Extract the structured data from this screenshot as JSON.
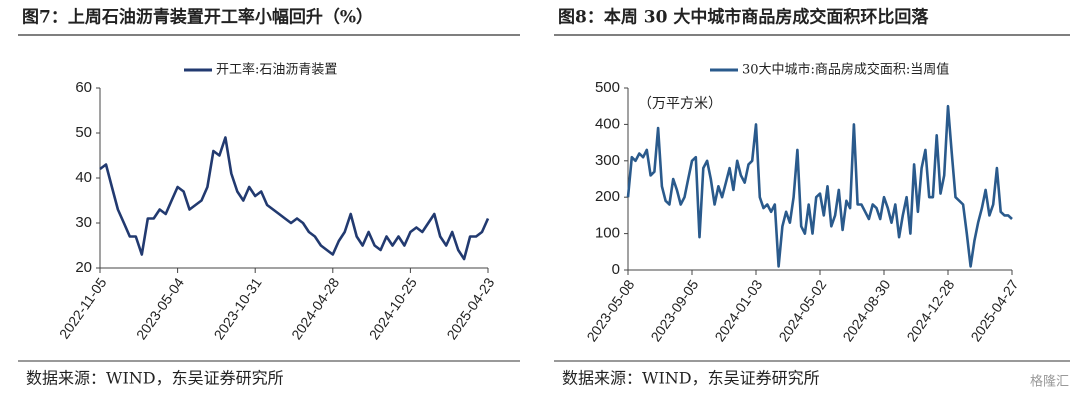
{
  "chart_data": [
    {
      "type": "line",
      "title": "图7：上周石油沥青装置开工率小幅回升（%）",
      "source": "数据来源：WIND，东吴证券研究所",
      "categories": [
        "2022-11-05",
        null,
        null,
        null,
        null,
        null,
        null,
        null,
        null,
        null,
        null,
        null,
        null,
        "2023-05-04",
        null,
        null,
        null,
        null,
        null,
        null,
        null,
        null,
        null,
        null,
        null,
        null,
        "2023-10-31",
        null,
        null,
        null,
        null,
        null,
        null,
        null,
        null,
        null,
        null,
        null,
        null,
        "2024-04-28",
        null,
        null,
        null,
        null,
        null,
        null,
        null,
        null,
        null,
        null,
        null,
        null,
        "2024-10-25",
        null,
        null,
        null,
        null,
        null,
        null,
        null,
        null,
        null,
        null,
        null,
        null,
        "2025-04-23"
      ],
      "series": [
        {
          "name": "开工率:石油沥青装置",
          "color": "#223a70",
          "values": [
            42,
            43,
            38,
            33,
            30,
            27,
            27,
            23,
            31,
            31,
            33,
            32,
            35,
            38,
            37,
            33,
            34,
            35,
            38,
            46,
            45,
            49,
            41,
            37,
            35,
            38,
            36,
            37,
            34,
            33,
            32,
            31,
            30,
            31,
            30,
            28,
            27,
            25,
            24,
            23,
            26,
            28,
            32,
            27,
            25,
            28,
            25,
            24,
            27,
            25,
            27,
            25,
            28,
            29,
            28,
            30,
            32,
            27,
            25,
            28,
            24,
            22,
            27,
            27,
            28,
            31
          ]
        }
      ],
      "ylim": [
        20,
        60
      ],
      "yticks": [
        20,
        30,
        40,
        50,
        60
      ],
      "legend": "top"
    },
    {
      "type": "line",
      "title": "图8：本周 30 大中城市商品房成交面积环比回落",
      "source": "数据来源：WIND，东吴证券研究所",
      "annotation": "（万平方米）",
      "categories": [
        "2023-05-08",
        null,
        null,
        null,
        null,
        null,
        null,
        null,
        null,
        null,
        null,
        null,
        null,
        null,
        null,
        null,
        null,
        "2023-09-05",
        null,
        null,
        null,
        null,
        null,
        null,
        null,
        null,
        null,
        null,
        null,
        null,
        null,
        null,
        null,
        null,
        "2024-01-03",
        null,
        null,
        null,
        null,
        null,
        null,
        null,
        null,
        null,
        null,
        null,
        null,
        null,
        null,
        null,
        null,
        "2024-05-02",
        null,
        null,
        null,
        null,
        null,
        null,
        null,
        null,
        null,
        null,
        null,
        null,
        null,
        null,
        null,
        null,
        "2024-08-30",
        null,
        null,
        null,
        null,
        null,
        null,
        null,
        null,
        null,
        null,
        null,
        null,
        null,
        null,
        null,
        null,
        "2024-12-28",
        null,
        null,
        null,
        null,
        null,
        null,
        null,
        null,
        null,
        null,
        null,
        null,
        null,
        null,
        null,
        null,
        "2025-04-27"
      ],
      "series": [
        {
          "name": "30大中城市:商品房成交面积:当周值",
          "color": "#2a5a8c",
          "values": [
            200,
            310,
            300,
            320,
            310,
            330,
            260,
            270,
            390,
            230,
            190,
            180,
            250,
            220,
            180,
            200,
            250,
            300,
            310,
            90,
            280,
            300,
            250,
            180,
            230,
            200,
            240,
            280,
            220,
            300,
            260,
            240,
            290,
            300,
            400,
            200,
            170,
            180,
            160,
            180,
            10,
            120,
            160,
            130,
            200,
            330,
            120,
            100,
            180,
            100,
            200,
            210,
            150,
            230,
            120,
            150,
            220,
            110,
            190,
            170,
            400,
            180,
            180,
            160,
            140,
            180,
            170,
            140,
            200,
            170,
            130,
            180,
            90,
            150,
            200,
            100,
            290,
            160,
            280,
            330,
            200,
            200,
            370,
            210,
            260,
            450,
            320,
            200,
            190,
            180,
            100,
            10,
            80,
            130,
            170,
            220,
            150,
            180,
            280,
            160,
            150,
            150,
            140
          ]
        }
      ],
      "ylim": [
        0,
        500
      ],
      "yticks": [
        0,
        100,
        200,
        300,
        400,
        500
      ],
      "legend": "top"
    }
  ],
  "watermark": "格隆汇"
}
